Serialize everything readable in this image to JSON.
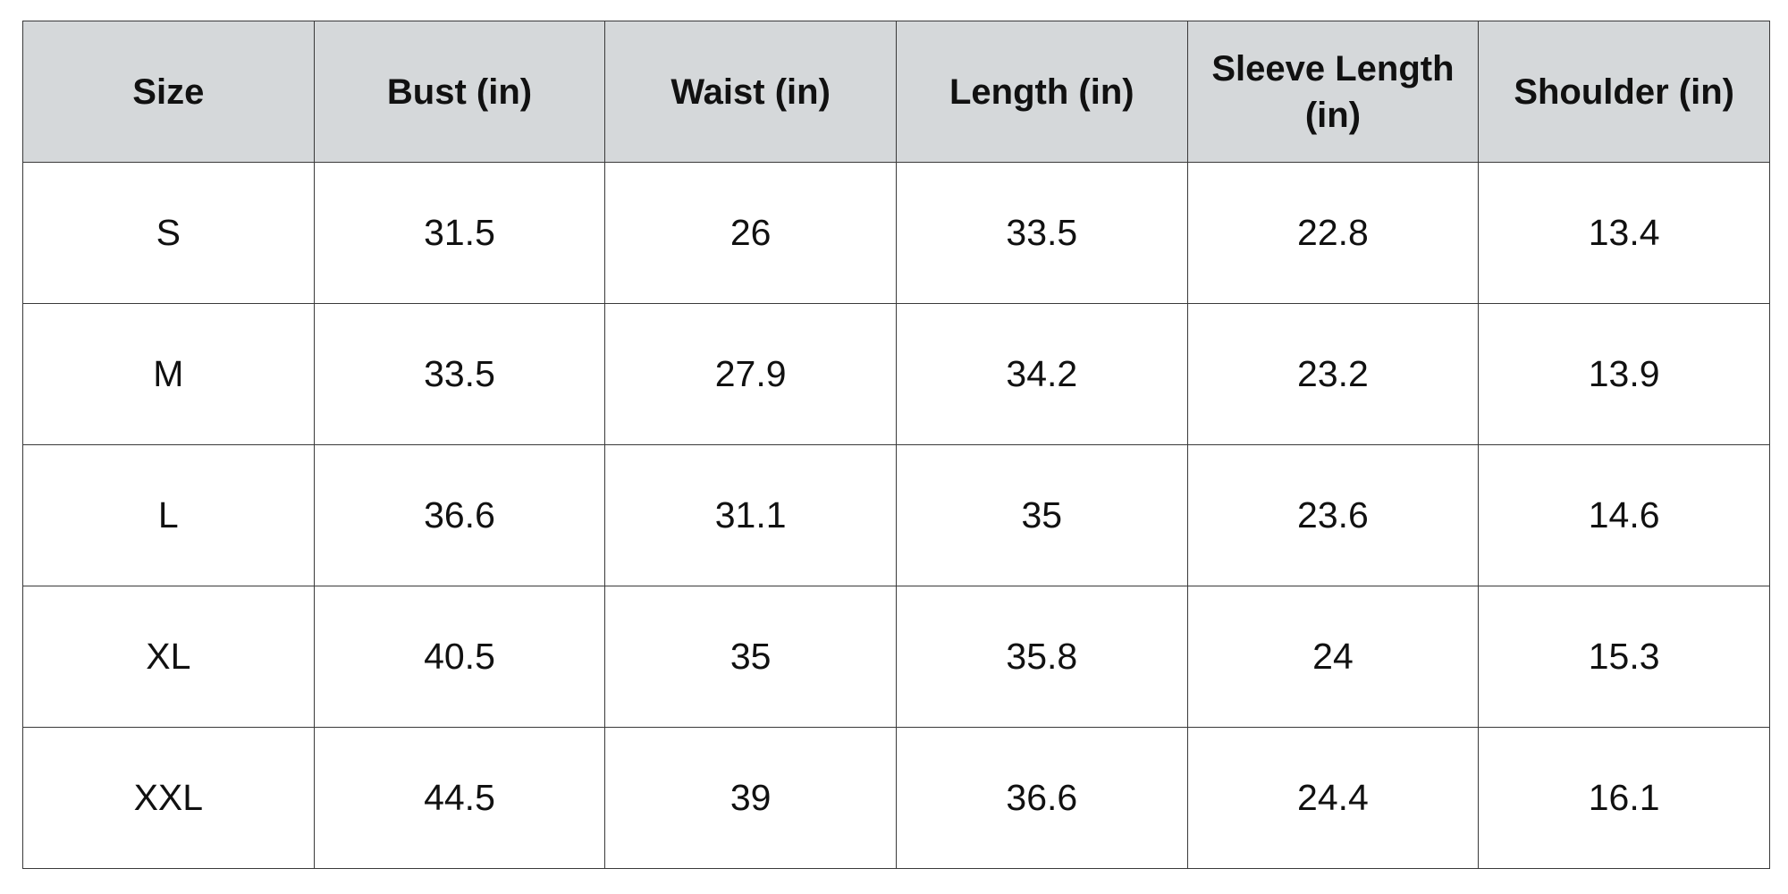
{
  "table": {
    "headers": [
      "Size",
      "Bust (in)",
      "Waist (in)",
      "Length (in)",
      "Sleeve Length (in)",
      "Shoulder (in)"
    ],
    "rows": [
      [
        "S",
        "31.5",
        "26",
        "33.5",
        "22.8",
        "13.4"
      ],
      [
        "M",
        "33.5",
        "27.9",
        "34.2",
        "23.2",
        "13.9"
      ],
      [
        "L",
        "36.6",
        "31.1",
        "35",
        "23.6",
        "14.6"
      ],
      [
        "XL",
        "40.5",
        "35",
        "35.8",
        "24",
        "15.3"
      ],
      [
        "XXL",
        "44.5",
        "39",
        "36.6",
        "24.4",
        "16.1"
      ]
    ]
  }
}
